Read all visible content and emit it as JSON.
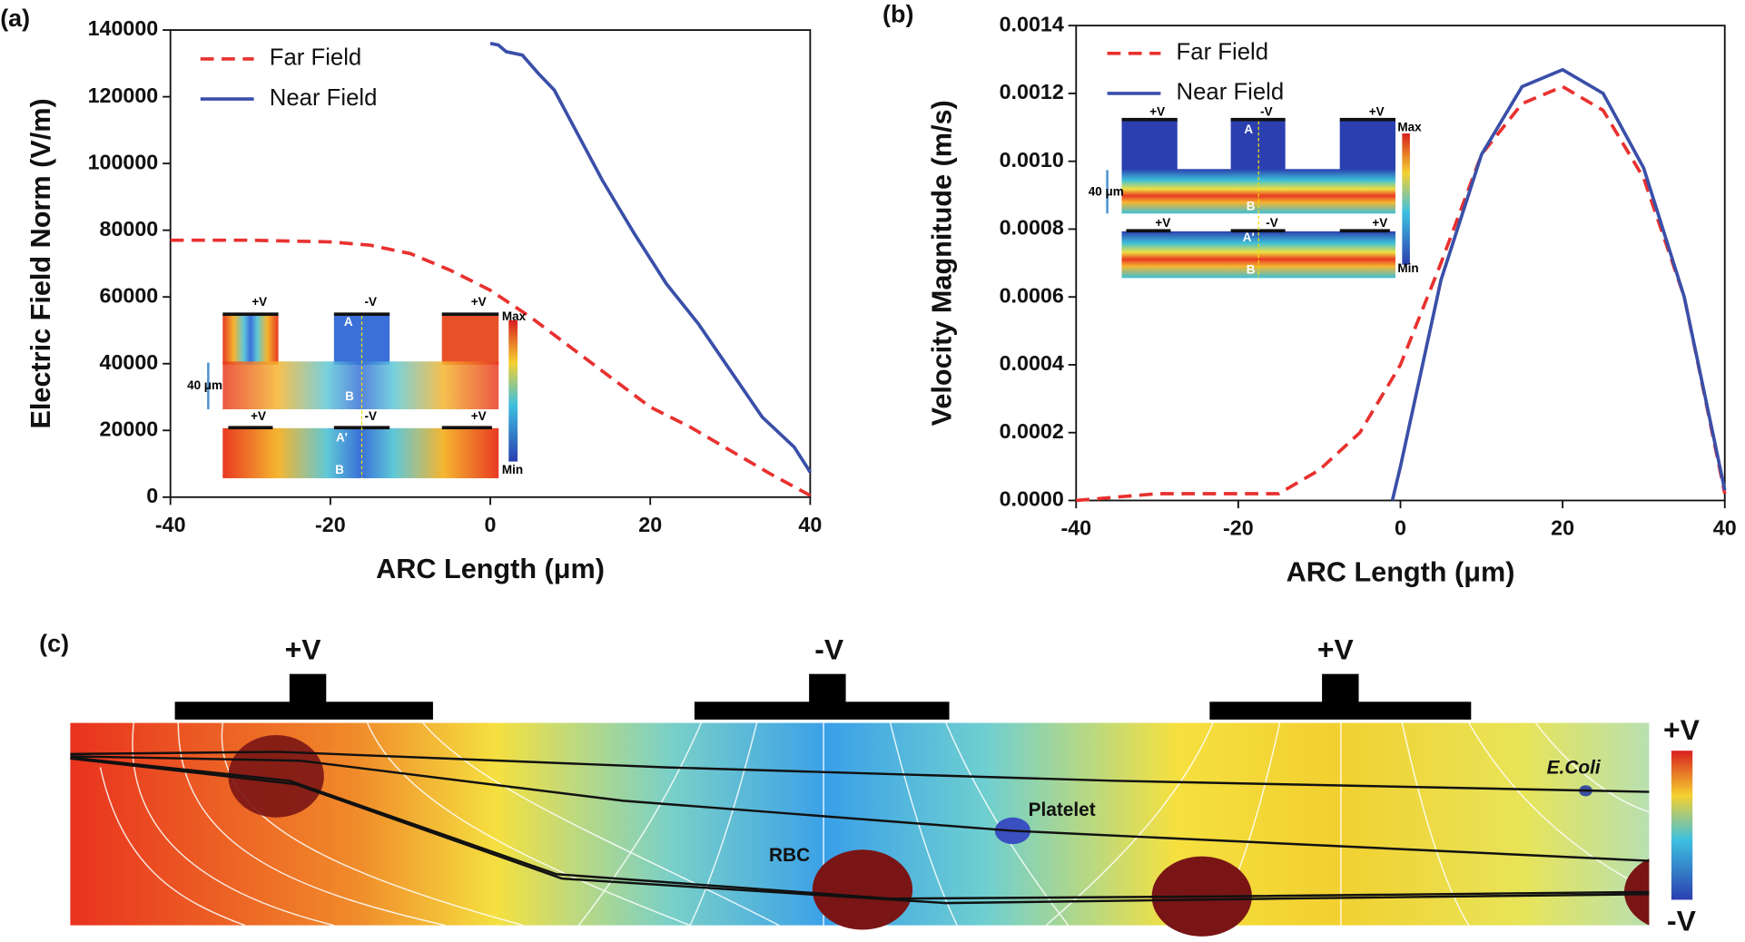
{
  "chart_data": [
    {
      "type": "line",
      "panel": "(a)",
      "x_label": "ARC Length (μm)",
      "y_label": "Electric Field Norm (V/m)",
      "xlim": [
        -40,
        40
      ],
      "xticks": [
        -40,
        -20,
        0,
        20,
        40
      ],
      "ylim": [
        0,
        140000
      ],
      "yticks": [
        0,
        20000,
        40000,
        60000,
        80000,
        100000,
        120000,
        140000
      ],
      "series": [
        {
          "name": "Far Field",
          "color": "#e8312f",
          "style": "dashed",
          "x": [
            -40,
            -30,
            -20,
            -15,
            -10,
            -5,
            0,
            5,
            10,
            15,
            20,
            25,
            30,
            35,
            40
          ],
          "values": [
            77000,
            77000,
            76500,
            75500,
            73000,
            68000,
            62000,
            54000,
            45000,
            36000,
            27000,
            21000,
            14000,
            7000,
            500
          ]
        },
        {
          "name": "Near Field",
          "color": "#3a4fa8",
          "style": "solid",
          "x": [
            0,
            1,
            2,
            4,
            6,
            8,
            10,
            14,
            18,
            22,
            26,
            30,
            34,
            38,
            40
          ],
          "values": [
            136000,
            135500,
            133500,
            132500,
            127000,
            122000,
            113000,
            95000,
            79000,
            64000,
            52000,
            38000,
            24000,
            15000,
            7500
          ]
        }
      ],
      "inset": {
        "top_labels": [
          "+V",
          "-V",
          "+V"
        ],
        "point_a": "A",
        "point_b": "B",
        "bottom_labels": [
          "+V",
          "-V",
          "+V"
        ],
        "point_a2": "A'",
        "point_b2": "B",
        "gap": "40 μm",
        "max": "Max",
        "min": "Min"
      }
    },
    {
      "type": "line",
      "panel": "(b)",
      "x_label": "ARC Length (μm)",
      "y_label": "Velocity Magnitude (m/s)",
      "xlim": [
        -40,
        40
      ],
      "xticks": [
        -40,
        -20,
        0,
        20,
        40
      ],
      "ylim": [
        0,
        0.0014
      ],
      "yticks": [
        {
          "value": 0,
          "label": "0.0000"
        },
        {
          "value": 0.0002,
          "label": "0.0002"
        },
        {
          "value": 0.0004,
          "label": "0.0004"
        },
        {
          "value": 0.0006,
          "label": "0.0006"
        },
        {
          "value": 0.0008,
          "label": "0.0008"
        },
        {
          "value": 0.001,
          "label": "0.0010"
        },
        {
          "value": 0.0012,
          "label": "0.0012"
        },
        {
          "value": 0.0014,
          "label": "0.0014"
        }
      ],
      "series": [
        {
          "name": "Far Field",
          "color": "#e8312f",
          "style": "dashed",
          "x": [
            -40,
            -30,
            -20,
            -15,
            -10,
            -5,
            0,
            5,
            10,
            15,
            20,
            25,
            30,
            35,
            40
          ],
          "values": [
            0,
            2e-05,
            2e-05,
            2e-05,
            9e-05,
            0.0002,
            0.0004,
            0.0007,
            0.00102,
            0.00117,
            0.00122,
            0.00115,
            0.00095,
            0.0006,
            2e-05
          ]
        },
        {
          "name": "Near Field",
          "color": "#3a4fa8",
          "style": "solid",
          "x": [
            -1,
            0,
            5,
            10,
            15,
            20,
            25,
            30,
            35,
            40
          ],
          "values": [
            0,
            0.0001,
            0.00065,
            0.00102,
            0.00122,
            0.00127,
            0.0012,
            0.00098,
            0.0006,
            3e-05
          ]
        }
      ],
      "inset": {
        "top_labels": [
          "+V",
          "-V",
          "+V"
        ],
        "point_a": "A",
        "point_b": "B",
        "bottom_labels": [
          "+V",
          "-V",
          "+V"
        ],
        "point_a2": "A'",
        "point_b2": "B",
        "gap": "40 μm",
        "max": "Max",
        "min": "Min"
      }
    }
  ],
  "panel_c": {
    "panel": "(c)",
    "electrodes": [
      "+V",
      "-V",
      "+V"
    ],
    "particles": {
      "ecoli": "E.Coli",
      "platelet": "Platelet",
      "rbc": "RBC"
    },
    "scale_max": "+V",
    "scale_min": "-V"
  }
}
